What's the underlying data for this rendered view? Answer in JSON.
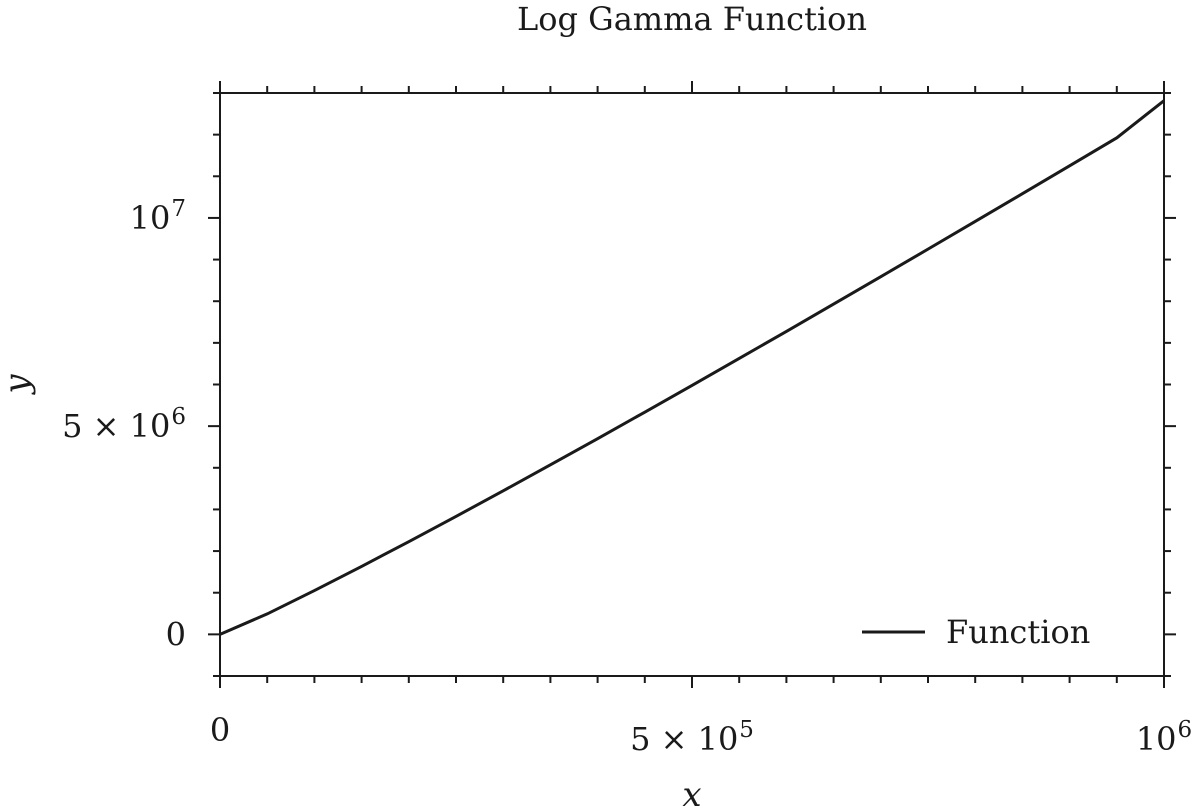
{
  "chart_data": {
    "type": "line",
    "title": "Log Gamma Function",
    "xlabel": "x",
    "ylabel": "y",
    "xlim": [
      0,
      1000000
    ],
    "ylim": [
      -1000000,
      13000000
    ],
    "x_ticks": [
      {
        "value": 0,
        "base": "0",
        "exp": ""
      },
      {
        "value": 500000,
        "base": "5 × 10",
        "exp": "5"
      },
      {
        "value": 1000000,
        "base": "10",
        "exp": "6"
      }
    ],
    "y_ticks": [
      {
        "value": 0,
        "base": "0",
        "exp": ""
      },
      {
        "value": 5000000,
        "base": "5 × 10",
        "exp": "6"
      },
      {
        "value": 10000000,
        "base": "10",
        "exp": "7"
      }
    ],
    "grid": false,
    "legend": {
      "position": "bottom-right",
      "entries": [
        "Function"
      ]
    },
    "series": [
      {
        "name": "Function",
        "color": "#1a1a1a",
        "x": [
          1,
          50000,
          100000,
          150000,
          200000,
          250000,
          300000,
          350000,
          400000,
          450000,
          500000,
          550000,
          600000,
          650000,
          700000,
          750000,
          800000,
          850000,
          900000,
          950000,
          1000000
        ],
        "y": [
          0,
          490986,
          1051292,
          1631596,
          2226168,
          2831973,
          3447070,
          4070119,
          4700125,
          5336226,
          5977900,
          6624518,
          7275478,
          7930444,
          8588936,
          9250595,
          9915013,
          10582099,
          11251546,
          11923192,
          12815504
        ]
      }
    ]
  }
}
